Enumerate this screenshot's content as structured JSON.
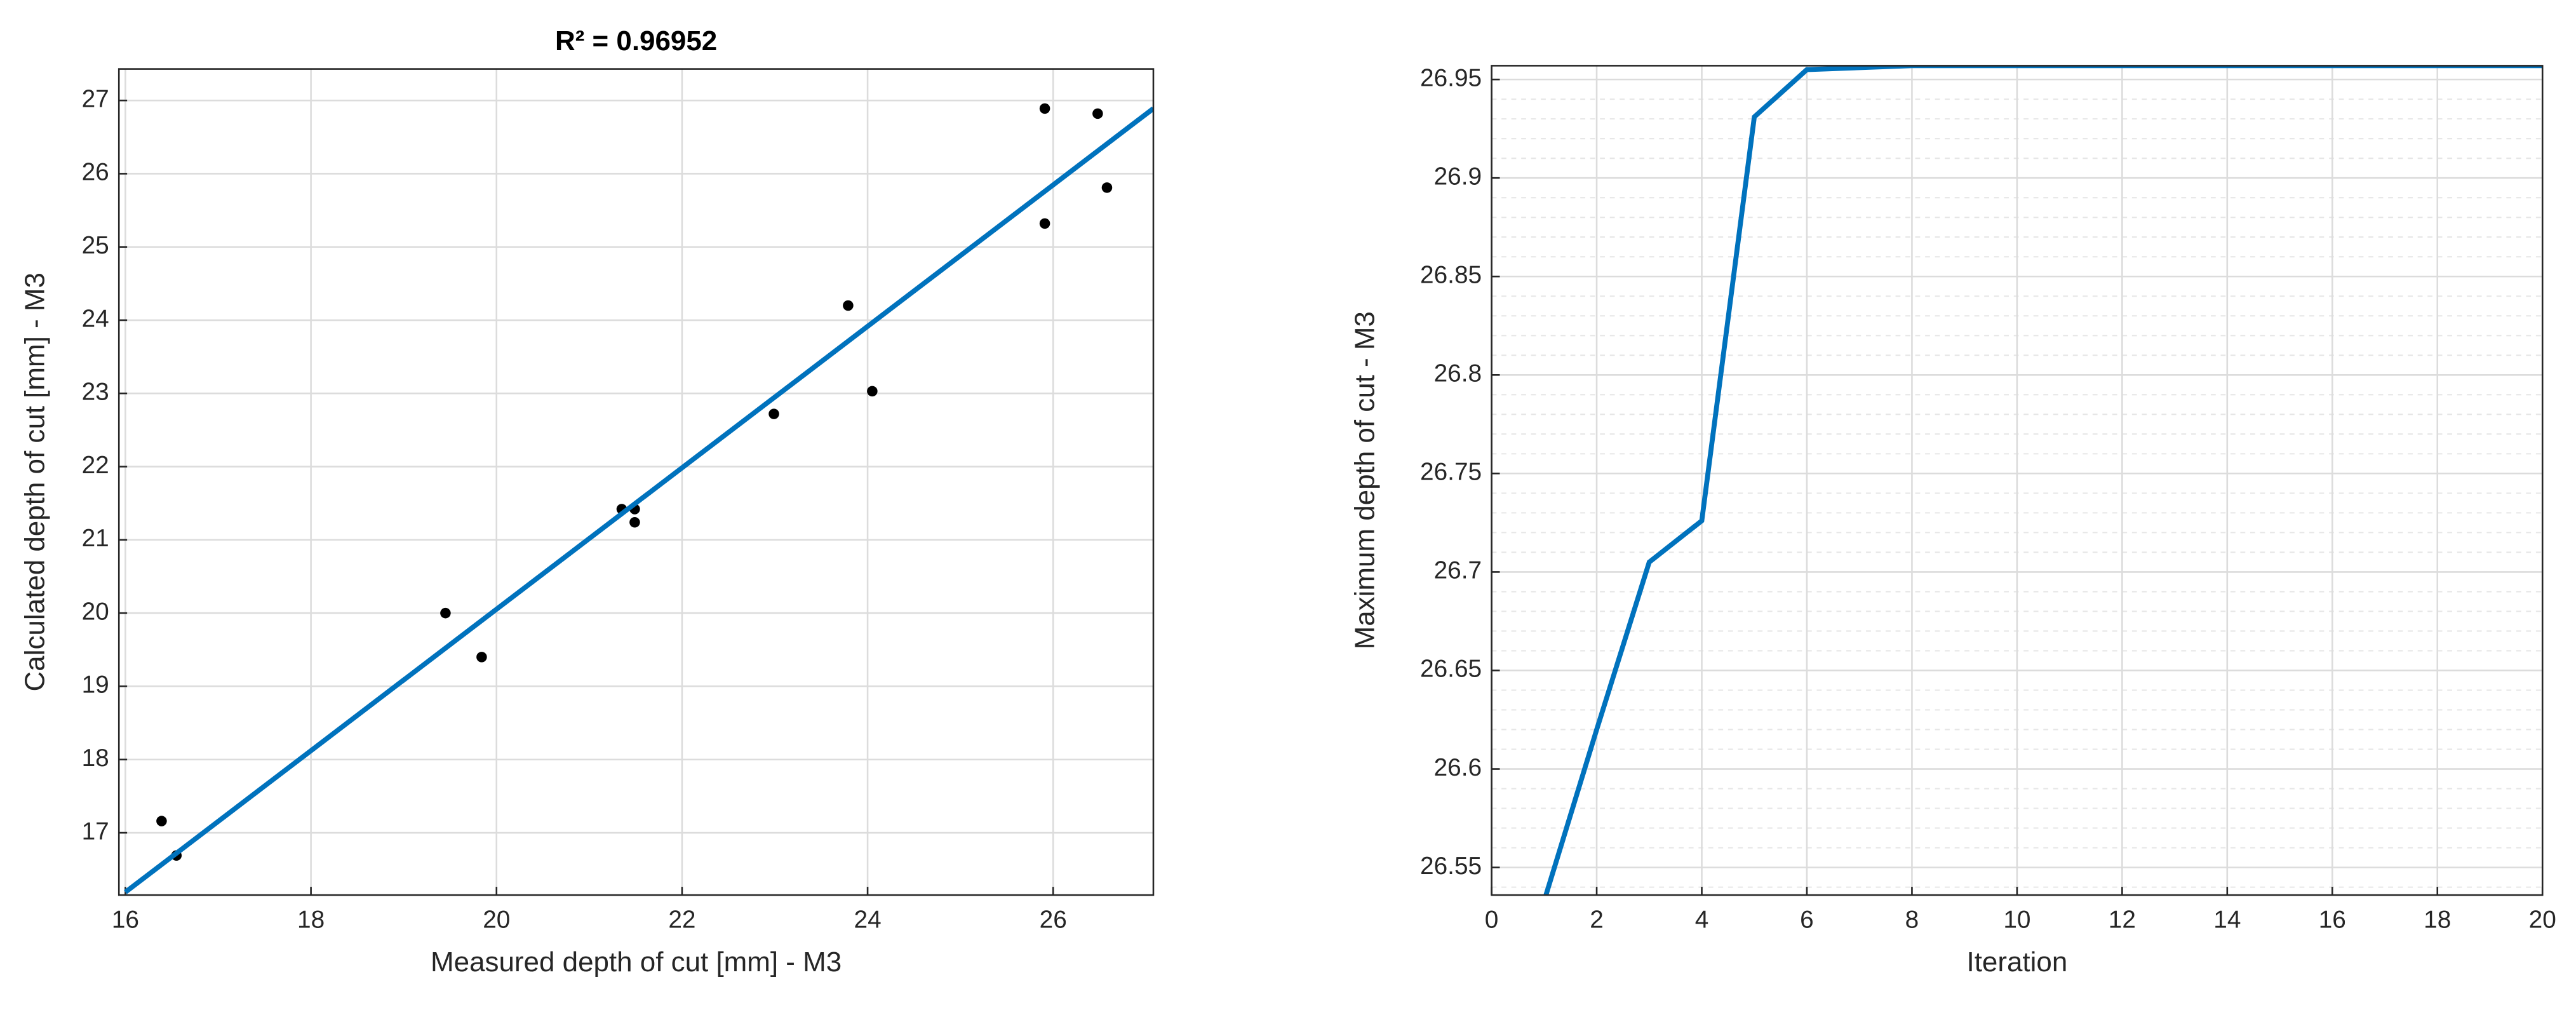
{
  "chart_data": [
    {
      "type": "scatter",
      "title": "R² = 0.96952",
      "x_label": "Measured depth of cut [mm] - M3",
      "y_label": "Calculated depth of cut [mm] - M3",
      "xlim": [
        15.93,
        27.08
      ],
      "ylim": [
        16.15,
        27.43
      ],
      "xticks": [
        16,
        18,
        20,
        22,
        24,
        26
      ],
      "yticks": [
        17,
        18,
        19,
        20,
        21,
        22,
        23,
        24,
        25,
        26,
        27
      ],
      "grid": true,
      "series": [
        {
          "kind": "points",
          "color": "#000000",
          "x": [
            16.39,
            16.55,
            19.45,
            19.84,
            21.35,
            21.49,
            21.49,
            22.99,
            23.79,
            24.05,
            25.91,
            25.91,
            26.48,
            26.58
          ],
          "values": [
            17.16,
            16.69,
            20.0,
            19.4,
            21.42,
            21.42,
            21.24,
            22.72,
            24.2,
            23.03,
            25.32,
            26.89,
            26.82,
            25.81
          ]
        },
        {
          "kind": "line",
          "color": "#0072bd",
          "x": [
            16,
            27.08
          ],
          "values": [
            16.19,
            26.89
          ]
        }
      ]
    },
    {
      "type": "line",
      "x_label": "Iteration",
      "y_label": "Maximum depth of cut - M3",
      "xlim": [
        0,
        20
      ],
      "ylim": [
        26.536,
        26.957
      ],
      "xticks": [
        0,
        2,
        4,
        6,
        8,
        10,
        12,
        14,
        16,
        18,
        20
      ],
      "yticks": [
        26.55,
        26.6,
        26.65,
        26.7,
        26.75,
        26.8,
        26.85,
        26.9,
        26.95
      ],
      "grid": true,
      "minor_grid": true,
      "series": [
        {
          "kind": "line",
          "color": "#0072bd",
          "x": [
            1,
            2,
            3,
            4,
            5,
            6,
            7,
            8,
            9,
            10,
            11,
            12,
            13,
            14,
            15,
            16,
            17,
            18,
            19,
            20
          ],
          "values": [
            26.533,
            26.62,
            26.705,
            26.726,
            26.931,
            26.955,
            26.956,
            26.957,
            26.957,
            26.957,
            26.957,
            26.957,
            26.957,
            26.957,
            26.957,
            26.957,
            26.957,
            26.957,
            26.957,
            26.957
          ]
        }
      ]
    }
  ]
}
